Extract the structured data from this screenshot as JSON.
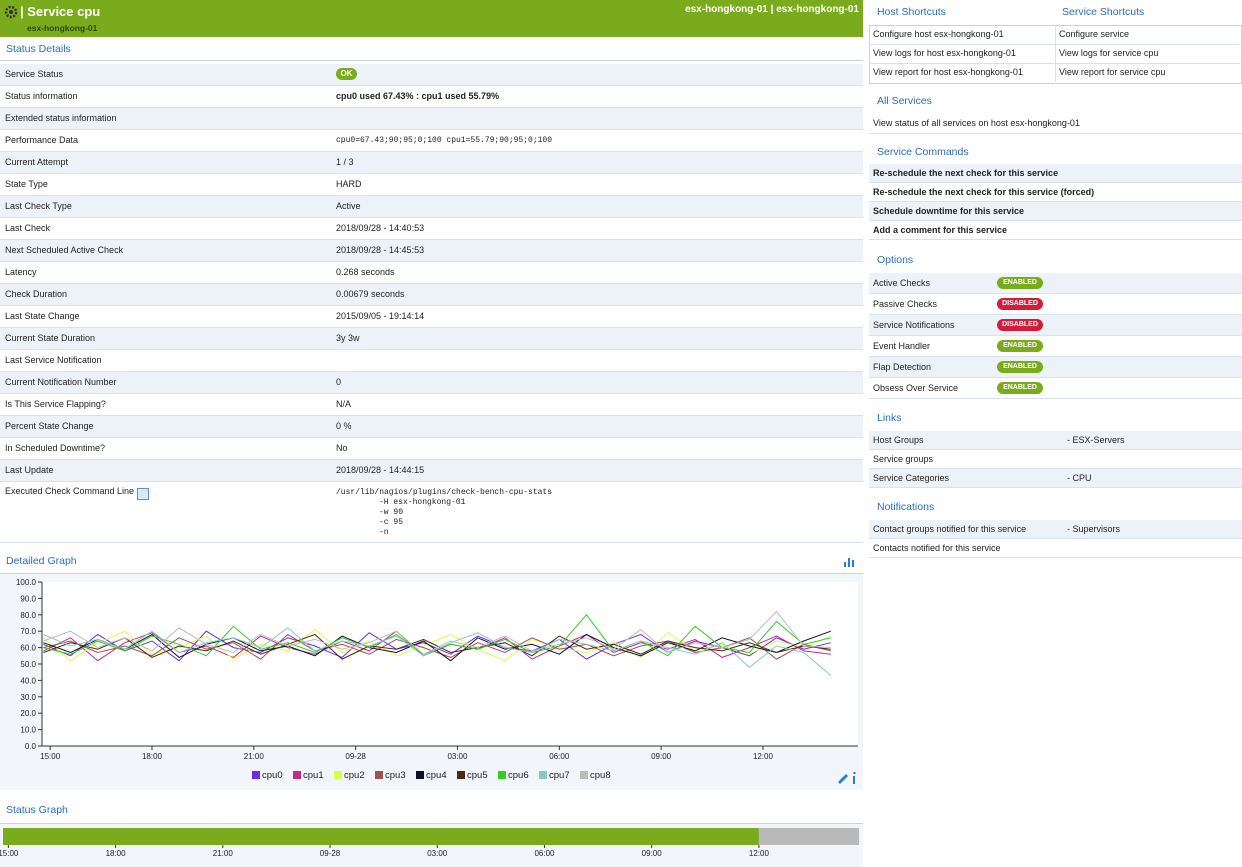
{
  "header": {
    "title": "| Service cpu",
    "subtitle": "esx-hongkong-01",
    "hosts": "esx-hongkong-01 | esx-hongkong-01"
  },
  "status_details": {
    "title": "Status Details",
    "rows": [
      {
        "label": "Service Status",
        "value": "OK"
      },
      {
        "label": "Status information",
        "value": "cpu0 used 67.43% : cpu1 used 55.79%"
      },
      {
        "label": "Extended status information"
      },
      {
        "label": "Performance Data",
        "value": "cpu0=67.43;90;95;0;100 cpu1=55.79;90;95;0;100"
      },
      {
        "label": "Current Attempt",
        "value": "1 / 3"
      },
      {
        "label": "State Type",
        "value": "HARD"
      },
      {
        "label": "Last Check Type",
        "value": "Active"
      },
      {
        "label": "Last Check",
        "value": "2018/09/28 - 14:40:53"
      },
      {
        "label": "Next Scheduled Active Check",
        "value": "2018/09/28 - 14:45:53"
      },
      {
        "label": "Latency",
        "value": "0.268 seconds"
      },
      {
        "label": "Check Duration",
        "value": "0.00679 seconds"
      },
      {
        "label": "Last State Change",
        "value": "2015/09/05 - 19:14:14"
      },
      {
        "label": "Current State Duration",
        "value": "3y 3w"
      },
      {
        "label": "Last Service Notification"
      },
      {
        "label": "Current Notification Number",
        "value": "0"
      },
      {
        "label": "Is This Service Flapping?",
        "value": "N/A"
      },
      {
        "label": "Percent State Change",
        "value": "0 %"
      },
      {
        "label": "In Scheduled Downtime?",
        "value": "No"
      },
      {
        "label": "Last Update",
        "value": "2018/09/28 - 14:44:15"
      }
    ],
    "command": {
      "label": "Executed Check Command Line",
      "lines": [
        "/usr/lib/nagios/plugins/check-bench-cpu-stats",
        "-H esx-hongkong-01",
        "-w 90",
        "-c 95",
        "-n"
      ]
    }
  },
  "chart_data": [
    {
      "type": "line",
      "title": "Detailed Graph",
      "x": [
        14.8,
        15.6,
        16.4,
        17.2,
        18,
        18.8,
        19.6,
        20.4,
        21.2,
        22,
        22.8,
        23.6,
        24.4,
        25.2,
        26,
        26.8,
        27.6,
        28.4,
        29.2,
        30,
        30.8,
        31.6,
        32.4,
        33.2,
        34,
        34.8,
        35.6,
        36.4,
        37.2,
        38
      ],
      "xlim": [
        14.76,
        38.8
      ],
      "xticks": [
        {
          "value": 15,
          "label": "15:00"
        },
        {
          "value": 18,
          "label": "18:00"
        },
        {
          "value": 21,
          "label": "21:00"
        },
        {
          "value": 24,
          "label": "09-28"
        },
        {
          "value": 27,
          "label": "03:00"
        },
        {
          "value": 30,
          "label": "06:00"
        },
        {
          "value": 33,
          "label": "09:00"
        },
        {
          "value": 36,
          "label": "12:00"
        }
      ],
      "ylim": [
        0,
        100
      ],
      "yticks": [
        {
          "value": 0,
          "label": "0.0"
        },
        {
          "value": 10,
          "label": "10.0"
        },
        {
          "value": 20,
          "label": "20.0"
        },
        {
          "value": 30,
          "label": "30.0"
        },
        {
          "value": 40,
          "label": "40.0"
        },
        {
          "value": 50,
          "label": "50.0"
        },
        {
          "value": 60,
          "label": "60.0"
        },
        {
          "value": 70,
          "label": "70.0"
        },
        {
          "value": 80,
          "label": "80.0"
        },
        {
          "value": 90,
          "label": "90.0"
        },
        {
          "value": 100,
          "label": "100.0"
        }
      ],
      "series": [
        {
          "name": "cpu0",
          "color": "#6a2cf5",
          "values": [
            62,
            55,
            68,
            58,
            64,
            52,
            70,
            60,
            57,
            66,
            61,
            54,
            69,
            59,
            63,
            56,
            67,
            60,
            58,
            65,
            53,
            62,
            68,
            57,
            64,
            60,
            55,
            66,
            59,
            63
          ]
        },
        {
          "name": "cpu1",
          "color": "#c42a8c",
          "values": [
            58,
            66,
            52,
            63,
            69,
            57,
            61,
            54,
            67,
            60,
            56,
            64,
            58,
            70,
            55,
            62,
            59,
            66,
            53,
            61,
            68,
            57,
            63,
            59,
            65,
            54,
            60,
            67,
            58,
            56
          ]
        },
        {
          "name": "cpu2",
          "color": "#d4ff4a",
          "values": [
            66,
            52,
            63,
            70,
            56,
            60,
            67,
            53,
            62,
            58,
            71,
            57,
            64,
            55,
            61,
            68,
            59,
            52,
            65,
            60,
            57,
            63,
            54,
            69,
            58,
            62,
            56,
            64,
            60,
            67
          ]
        },
        {
          "name": "cpu3",
          "color": "#a0524f",
          "values": [
            60,
            64,
            57,
            61,
            55,
            66,
            59,
            63,
            53,
            68,
            58,
            62,
            56,
            65,
            60,
            54,
            63,
            57,
            66,
            59,
            62,
            55,
            61,
            64,
            57,
            60,
            66,
            53,
            62,
            58
          ]
        },
        {
          "name": "cpu4",
          "color": "#101030",
          "values": [
            63,
            57,
            65,
            59,
            68,
            54,
            62,
            66,
            58,
            61,
            55,
            67,
            60,
            57,
            64,
            52,
            66,
            59,
            62,
            56,
            68,
            60,
            55,
            63,
            58,
            66,
            61,
            57,
            64,
            70
          ]
        },
        {
          "name": "cpu5",
          "color": "#4a2a10",
          "values": [
            57,
            63,
            59,
            66,
            54,
            61,
            58,
            64,
            56,
            62,
            68,
            53,
            61,
            59,
            65,
            57,
            60,
            63,
            55,
            67,
            59,
            62,
            56,
            64,
            60,
            58,
            63,
            57,
            61,
            59
          ]
        },
        {
          "name": "cpu6",
          "color": "#33cc22",
          "values": [
            60,
            56,
            64,
            58,
            67,
            62,
            55,
            73,
            59,
            63,
            57,
            66,
            60,
            68,
            56,
            62,
            59,
            65,
            57,
            61,
            80,
            58,
            64,
            55,
            73,
            60,
            57,
            76,
            62,
            66
          ]
        },
        {
          "name": "cpu7",
          "color": "#88c8c8",
          "values": [
            68,
            61,
            65,
            59,
            70,
            57,
            63,
            66,
            60,
            72,
            58,
            64,
            61,
            67,
            55,
            63,
            69,
            60,
            57,
            65,
            62,
            58,
            64,
            60,
            56,
            63,
            48,
            61,
            57,
            43
          ]
        },
        {
          "name": "cpu8",
          "color": "#bbbbbb",
          "values": [
            64,
            70,
            60,
            66,
            58,
            72,
            62,
            57,
            68,
            61,
            65,
            59,
            63,
            70,
            56,
            64,
            60,
            67,
            58,
            62,
            66,
            59,
            71,
            57,
            63,
            60,
            65,
            82,
            61,
            60
          ]
        }
      ]
    },
    {
      "type": "timeline",
      "title": "Status Graph",
      "xlim": [
        14.85,
        38.8
      ],
      "xticks": [
        {
          "value": 15,
          "label": "15:00"
        },
        {
          "value": 18,
          "label": "18:00"
        },
        {
          "value": 21,
          "label": "21:00"
        },
        {
          "value": 24,
          "label": "09-28"
        },
        {
          "value": 27,
          "label": "03:00"
        },
        {
          "value": 30,
          "label": "06:00"
        },
        {
          "value": 33,
          "label": "09:00"
        },
        {
          "value": 36,
          "label": "12:00"
        }
      ],
      "segments": [
        {
          "start": 14.85,
          "end": 36,
          "color": "#7aab1c"
        },
        {
          "start": 36,
          "end": 38.8,
          "color": "#b9b9b9"
        }
      ]
    }
  ],
  "host_shortcuts": {
    "title": "Host Shortcuts",
    "links": [
      "Configure host esx-hongkong-01",
      "View logs for host esx-hongkong-01",
      "View report for host esx-hongkong-01"
    ]
  },
  "service_shortcuts": {
    "title": "Service Shortcuts",
    "links": [
      "Configure service",
      "View logs for service cpu",
      "View report for service cpu"
    ]
  },
  "all_services": {
    "title": "All Services",
    "links": [
      "View status of all services on host esx-hongkong-01"
    ]
  },
  "service_commands": {
    "title": "Service Commands",
    "items": [
      "Re-schedule the next check for this service",
      "Re-schedule the next check for this service (forced)",
      "Schedule downtime for this service",
      "Add a comment for this service"
    ]
  },
  "options": {
    "title": "Options",
    "items": [
      {
        "label": "Active Checks",
        "state": "ENABLED"
      },
      {
        "label": "Passive Checks",
        "state": "DISABLED"
      },
      {
        "label": "Service Notifications",
        "state": "DISABLED"
      },
      {
        "label": "Event Handler",
        "state": "ENABLED"
      },
      {
        "label": "Flap Detection",
        "state": "ENABLED"
      },
      {
        "label": "Obsess Over Service",
        "state": "ENABLED"
      }
    ]
  },
  "links": {
    "title": "Links",
    "rows": [
      {
        "label": "Host Groups",
        "value": "- ESX-Servers"
      },
      {
        "label": "Service groups"
      },
      {
        "label": "Service Categories",
        "value": "- CPU"
      }
    ]
  },
  "notifications": {
    "title": "Notifications",
    "rows": [
      {
        "label": "Contact groups notified for this service",
        "value": "- Supervisors"
      },
      {
        "label": "Contacts notified for this service"
      }
    ]
  }
}
